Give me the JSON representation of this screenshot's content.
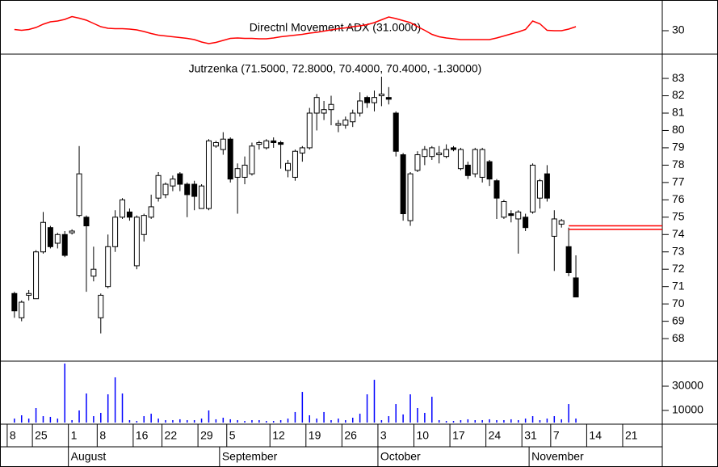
{
  "chart_data": [
    {
      "type": "line",
      "title": "Directnl Movement ADX (31.0000)",
      "color": "#ff0000",
      "ylim": [
        24.2,
        37.6
      ],
      "yticks": [
        30
      ],
      "values": [
        30.3,
        30.1,
        30.3,
        30.8,
        31.6,
        32.2,
        32.4,
        32.8,
        33.5,
        33.1,
        32.6,
        31.8,
        31.0,
        30.6,
        30.5,
        30.5,
        30.4,
        30.2,
        29.8,
        29.3,
        28.9,
        28.7,
        28.5,
        28.3,
        28.1,
        27.8,
        27.2,
        26.8,
        27.1,
        27.6,
        28.1,
        28.2,
        28.1,
        28.1,
        28.0,
        28.0,
        28.2,
        28.5,
        28.7,
        28.9,
        29.1,
        29.4,
        29.6,
        29.9,
        30.2,
        30.5,
        30.7,
        31.0,
        31.2,
        31.5,
        32.0,
        32.7,
        33.4,
        33.0,
        32.5,
        32.0,
        31.0,
        30.1,
        29.1,
        28.5,
        28.2,
        28.0,
        27.8,
        27.8,
        27.8,
        27.8,
        27.8,
        28.2,
        28.7,
        29.2,
        29.7,
        30.3,
        32.4,
        31.7,
        30.1,
        30.0,
        30.0,
        30.4,
        31.0
      ]
    },
    {
      "type": "candlestick",
      "title": "Jutrzenka (71.5000, 72.8000, 70.4000, 70.4000, -1.30000)",
      "up_color": "#ffffff",
      "down_color": "#000000",
      "ylim": [
        66.7,
        84.4
      ],
      "yticks": [
        68,
        69,
        70,
        71,
        72,
        73,
        74,
        75,
        76,
        77,
        78,
        79,
        80,
        81,
        82,
        83
      ],
      "xlim": [
        -2,
        90
      ],
      "xticks": [
        {
          "value": -1,
          "label": "8"
        },
        {
          "value": 2.5,
          "label": "25"
        },
        {
          "value": 7.5,
          "label": "1"
        },
        {
          "value": 11.5,
          "label": "8"
        },
        {
          "value": 16.5,
          "label": "16"
        },
        {
          "value": 20.5,
          "label": "22"
        },
        {
          "value": 25.5,
          "label": "29"
        },
        {
          "value": 29.5,
          "label": "5"
        },
        {
          "value": 35.5,
          "label": "12"
        },
        {
          "value": 40.5,
          "label": "19"
        },
        {
          "value": 45.5,
          "label": "26"
        },
        {
          "value": 50.5,
          "label": "3"
        },
        {
          "value": 55.5,
          "label": "10"
        },
        {
          "value": 60.5,
          "label": "17"
        },
        {
          "value": 65.5,
          "label": "24"
        },
        {
          "value": 70.5,
          "label": "31"
        },
        {
          "value": 74.5,
          "label": "7"
        },
        {
          "value": 79.5,
          "label": "14"
        },
        {
          "value": 84.5,
          "label": "21"
        }
      ],
      "month_ticks": [
        {
          "value": 7.5,
          "label": "August"
        },
        {
          "value": 28.5,
          "label": "September"
        },
        {
          "value": 50.5,
          "label": "October"
        },
        {
          "value": 71.5,
          "label": "November"
        }
      ],
      "hlines": [
        74.5,
        74.3
      ],
      "hline_color": "#ff0000",
      "open": [
        70.6,
        69.2,
        70.5,
        70.3,
        73.0,
        74.4,
        73.5,
        74.0,
        74.1,
        75.1,
        75.0,
        71.6,
        69.2,
        71.0,
        73.3,
        75.0,
        75.3,
        72.2,
        74.0,
        75.0,
        76.1,
        76.3,
        76.8,
        77.5,
        76.9,
        76.9,
        75.5,
        75.5,
        79.1,
        78.9,
        79.5,
        77.3,
        77.3,
        77.5,
        79.2,
        79.0,
        79.4,
        79.3,
        77.7,
        77.3,
        78.7,
        79.0,
        81.0,
        81.0,
        81.2,
        80.3,
        80.3,
        80.5,
        81.0,
        81.9,
        81.6,
        82.0,
        81.9,
        81.0,
        78.6,
        74.8,
        77.7,
        78.5,
        78.5,
        78.6,
        78.5,
        79.0,
        77.8,
        78.0,
        77.5,
        77.3,
        78.2,
        77.1,
        75.0,
        75.2,
        74.9,
        75.0,
        75.3,
        76.1,
        77.5,
        73.9,
        74.6,
        73.3,
        71.5
      ],
      "high": [
        70.7,
        70.2,
        70.8,
        73.1,
        75.3,
        74.5,
        74.1,
        74.2,
        74.3,
        79.1,
        75.1,
        73.3,
        70.6,
        74.0,
        75.4,
        76.1,
        75.5,
        75.1,
        75.2,
        76.3,
        77.6,
        77.0,
        77.4,
        77.6,
        77.0,
        77.1,
        76.9,
        79.5,
        79.4,
        79.9,
        79.6,
        78.1,
        78.5,
        79.3,
        79.4,
        79.5,
        79.6,
        79.4,
        78.3,
        78.9,
        79.1,
        81.3,
        82.1,
        81.7,
        82.0,
        80.6,
        80.8,
        81.2,
        82.2,
        82.0,
        82.3,
        83.1,
        82.5,
        81.1,
        78.7,
        77.6,
        78.8,
        79.1,
        79.1,
        79.1,
        79.2,
        79.1,
        79.0,
        78.2,
        79.0,
        79.0,
        78.3,
        77.2,
        76.0,
        75.4,
        75.4,
        75.2,
        78.1,
        77.2,
        78.0,
        75.4,
        74.9,
        74.4,
        72.8
      ],
      "low": [
        69.2,
        69.0,
        70.2,
        70.3,
        72.9,
        73.2,
        73.2,
        72.7,
        74.0,
        75.0,
        70.7,
        71.3,
        68.3,
        70.9,
        73.0,
        74.9,
        74.8,
        72.0,
        73.6,
        74.9,
        75.9,
        76.1,
        76.5,
        76.5,
        75.0,
        75.4,
        75.5,
        75.4,
        79.0,
        78.6,
        77.0,
        75.2,
        76.9,
        77.4,
        78.9,
        78.9,
        79.0,
        77.8,
        77.3,
        77.1,
        78.2,
        78.9,
        80.0,
        80.6,
        80.3,
        79.9,
        80.1,
        80.2,
        80.8,
        81.3,
        81.1,
        81.4,
        81.5,
        78.5,
        74.8,
        74.5,
        77.6,
        78.0,
        78.3,
        78.1,
        78.4,
        78.8,
        77.7,
        77.2,
        77.3,
        77.0,
        76.8,
        74.9,
        74.9,
        74.7,
        72.9,
        74.2,
        75.2,
        75.5,
        75.9,
        71.9,
        74.4,
        71.6,
        70.4
      ],
      "close": [
        69.6,
        70.1,
        70.6,
        73.0,
        74.7,
        73.3,
        74.0,
        72.8,
        74.2,
        77.5,
        74.5,
        72.0,
        70.5,
        73.3,
        75.0,
        76.0,
        75.0,
        75.0,
        75.1,
        75.6,
        77.4,
        76.9,
        77.2,
        76.9,
        76.3,
        76.2,
        76.8,
        79.4,
        79.3,
        79.5,
        77.2,
        77.8,
        78.0,
        79.1,
        79.3,
        79.4,
        79.3,
        79.2,
        78.1,
        78.8,
        79.0,
        81.0,
        81.9,
        81.2,
        81.5,
        80.4,
        80.6,
        81.0,
        81.7,
        81.6,
        81.9,
        82.1,
        81.8,
        78.8,
        75.2,
        77.5,
        78.6,
        78.9,
        79.0,
        78.7,
        78.9,
        78.9,
        78.9,
        77.4,
        78.9,
        78.9,
        77.2,
        76.1,
        75.9,
        75.1,
        75.3,
        74.4,
        78.0,
        77.1,
        76.1,
        74.9,
        74.8,
        71.8,
        70.4
      ]
    },
    {
      "type": "bar",
      "color": "#0000ff",
      "ylim": [
        0,
        50000
      ],
      "yticks": [
        10000,
        30000
      ],
      "values": [
        3300,
        6000,
        3300,
        12000,
        5300,
        4700,
        3300,
        48700,
        2000,
        10000,
        24000,
        5300,
        8000,
        23300,
        37300,
        24000,
        2000,
        1300,
        5300,
        7300,
        3300,
        2000,
        2000,
        2700,
        2000,
        2000,
        3300,
        10000,
        2700,
        4000,
        2700,
        2000,
        1300,
        2000,
        2000,
        1300,
        1300,
        2000,
        3300,
        8700,
        25300,
        6000,
        3300,
        8700,
        2000,
        3300,
        2000,
        4000,
        7300,
        23300,
        35300,
        2000,
        5300,
        15300,
        6700,
        23300,
        12000,
        8000,
        21300,
        2000,
        1300,
        1300,
        2000,
        2700,
        2000,
        2000,
        2700,
        2000,
        2000,
        2700,
        2000,
        3300,
        5300,
        2000,
        3300,
        5300,
        2700,
        15300,
        3300
      ]
    }
  ]
}
